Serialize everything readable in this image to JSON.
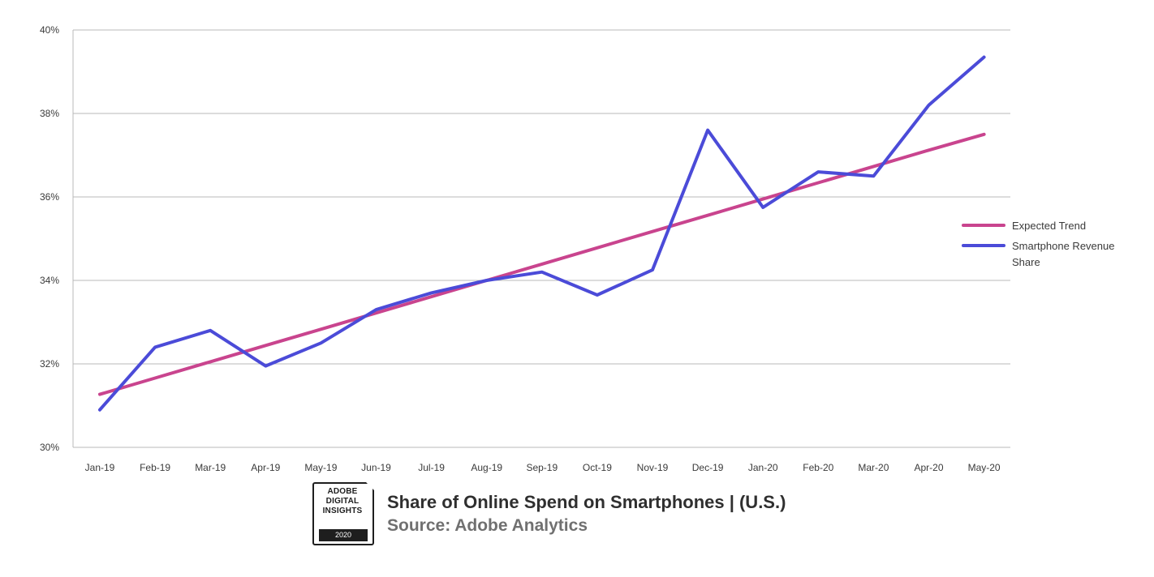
{
  "chart_data": {
    "type": "line",
    "title": "",
    "xlabel": "",
    "ylabel": "",
    "categories": [
      "Jan-19",
      "Feb-19",
      "Mar-19",
      "Apr-19",
      "May-19",
      "Jun-19",
      "Jul-19",
      "Aug-19",
      "Sep-19",
      "Oct-19",
      "Nov-19",
      "Dec-19",
      "Jan-20",
      "Feb-20",
      "Mar-20",
      "Apr-20",
      "May-20"
    ],
    "ylim": [
      30,
      40
    ],
    "yticks": [
      30,
      32,
      34,
      36,
      38,
      40
    ],
    "ytick_labels": [
      "30%",
      "32%",
      "34%",
      "36%",
      "38%",
      "40%"
    ],
    "grid": true,
    "legend_position": "right",
    "series": [
      {
        "name": "Expected Trend",
        "color": "#c9448e",
        "values": [
          31.27,
          31.66,
          32.05,
          32.44,
          32.83,
          33.22,
          33.61,
          34.0,
          34.39,
          34.78,
          35.17,
          35.56,
          35.95,
          36.34,
          36.73,
          37.12,
          37.5
        ]
      },
      {
        "name": "Smartphone Revenue Share",
        "color": "#4b4bd8",
        "values": [
          30.9,
          32.4,
          32.8,
          31.95,
          32.5,
          33.3,
          33.7,
          34.0,
          34.2,
          33.65,
          34.25,
          37.6,
          35.75,
          36.6,
          36.5,
          38.2,
          39.35
        ]
      }
    ]
  },
  "footer": {
    "badge_line1": "ADOBE",
    "badge_line2": "DIGITAL",
    "badge_line3": "INSIGHTS",
    "badge_year": "2020",
    "title": "Share of Online Spend on Smartphones | (U.S.)",
    "source": "Source: Adobe Analytics"
  }
}
